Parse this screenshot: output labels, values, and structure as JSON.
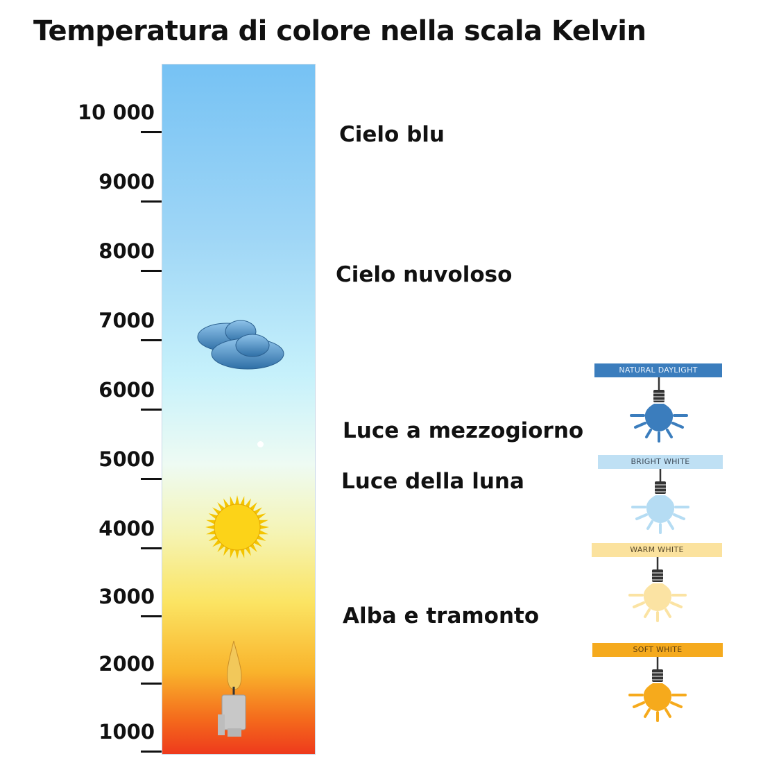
{
  "title": "Temperatura di colore nella scala Kelvin",
  "scale": {
    "ticks": [
      "10 000",
      "9000",
      "8000",
      "7000",
      "6000",
      "5000",
      "4000",
      "3000",
      "2000",
      "1000"
    ]
  },
  "descriptions": [
    "Cielo blu",
    "Cielo nuvoloso",
    "Luce a mezzogiorno",
    "Luce della luna",
    "Alba e tramonto"
  ],
  "bulbs": [
    {
      "label": "NATURAL DAYLIGHT",
      "color": "#3b7dbd",
      "label_bg": "#3b7dbd",
      "label_fg": "#e6f0fa"
    },
    {
      "label": "BRIGHT WHITE",
      "color": "#b5dcf3",
      "label_bg": "#bfe0f4",
      "label_fg": "#3c4a58"
    },
    {
      "label": "WARM WHITE",
      "color": "#fbe3a3",
      "label_bg": "#fbe29e",
      "label_fg": "#5a4a2a"
    },
    {
      "label": "SOFT WHITE",
      "color": "#f6aa1c",
      "label_bg": "#f5aa1e",
      "label_fg": "#5a3c10"
    }
  ]
}
